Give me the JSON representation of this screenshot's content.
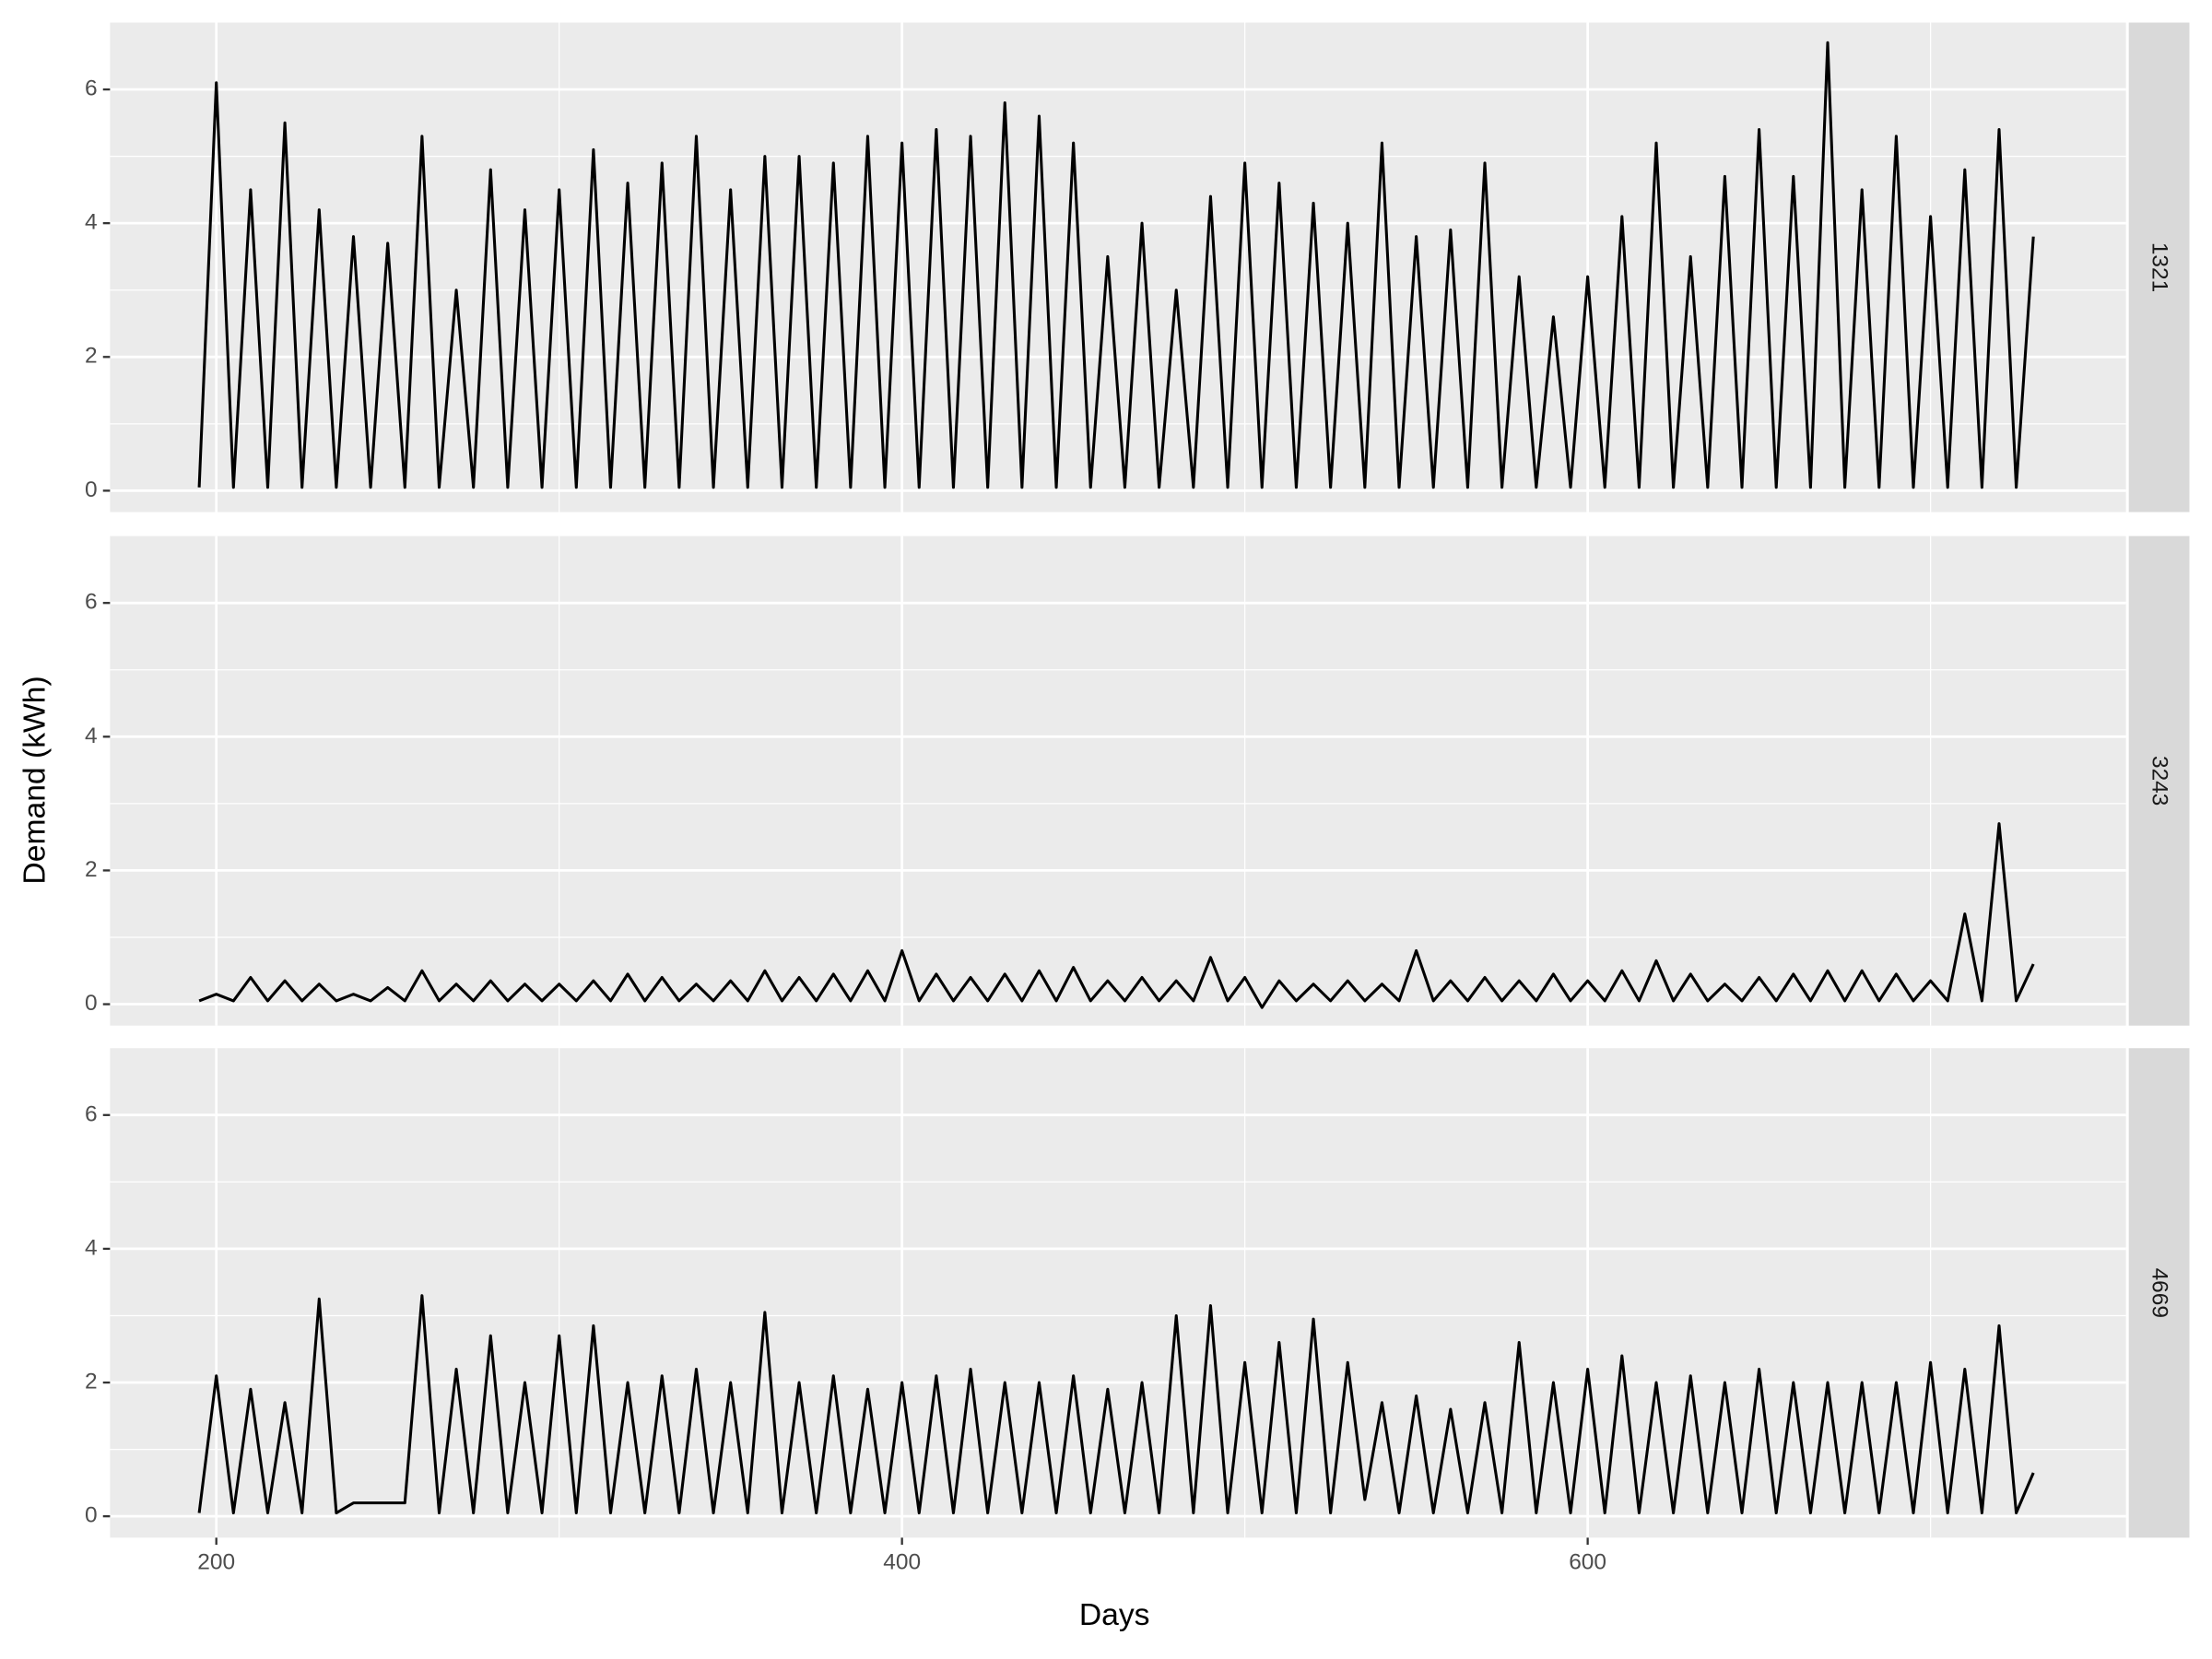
{
  "chart_data": {
    "type": "line",
    "xlabel": "Days",
    "ylabel": "Demand (kWh)",
    "color": "#000000",
    "grid": true,
    "xlim": [
      169,
      757
    ],
    "ylim": [
      -0.32,
      7.0
    ],
    "xticks": [
      200,
      400,
      600
    ],
    "yticks": [
      0,
      2,
      4,
      6
    ],
    "x": [
      195,
      200,
      205,
      210,
      215,
      220,
      225,
      230,
      235,
      240,
      245,
      250,
      255,
      260,
      265,
      270,
      275,
      280,
      285,
      290,
      295,
      300,
      305,
      310,
      315,
      320,
      325,
      330,
      335,
      340,
      345,
      350,
      355,
      360,
      365,
      370,
      375,
      380,
      385,
      390,
      395,
      400,
      405,
      410,
      415,
      420,
      425,
      430,
      435,
      440,
      445,
      450,
      455,
      460,
      465,
      470,
      475,
      480,
      485,
      490,
      495,
      500,
      505,
      510,
      515,
      520,
      525,
      530,
      535,
      540,
      545,
      550,
      555,
      560,
      565,
      570,
      575,
      580,
      585,
      590,
      595,
      600,
      605,
      610,
      615,
      620,
      625,
      630,
      635,
      640,
      645,
      650,
      655,
      660,
      665,
      670,
      675,
      680,
      685,
      690,
      695,
      700,
      705,
      710,
      715,
      720,
      725,
      730
    ],
    "facets": [
      {
        "label": "1321",
        "values": [
          0.05,
          6.1,
          0.05,
          4.5,
          0.05,
          5.5,
          0.05,
          4.2,
          0.05,
          3.8,
          0.05,
          3.7,
          0.05,
          5.3,
          0.05,
          3.0,
          0.05,
          4.8,
          0.05,
          4.2,
          0.05,
          4.5,
          0.05,
          5.1,
          0.05,
          4.6,
          0.05,
          4.9,
          0.05,
          5.3,
          0.05,
          4.5,
          0.05,
          5.0,
          0.05,
          5.0,
          0.05,
          4.9,
          0.05,
          5.3,
          0.05,
          5.2,
          0.05,
          5.4,
          0.05,
          5.3,
          0.05,
          5.8,
          0.05,
          5.6,
          0.05,
          5.2,
          0.05,
          3.5,
          0.05,
          4.0,
          0.05,
          3.0,
          0.05,
          4.4,
          0.05,
          4.9,
          0.05,
          4.6,
          0.05,
          4.3,
          0.05,
          4.0,
          0.05,
          5.2,
          0.05,
          3.8,
          0.05,
          3.9,
          0.05,
          4.9,
          0.05,
          3.2,
          0.05,
          2.6,
          0.05,
          3.2,
          0.05,
          4.1,
          0.05,
          5.2,
          0.05,
          3.5,
          0.05,
          4.7,
          0.05,
          5.4,
          0.05,
          4.7,
          0.05,
          6.7,
          0.05,
          4.5,
          0.05,
          5.3,
          0.05,
          4.1,
          0.05,
          4.8,
          0.05,
          5.4,
          0.05,
          3.8
        ]
      },
      {
        "label": "3243",
        "values": [
          0.05,
          0.15,
          0.05,
          0.4,
          0.05,
          0.35,
          0.05,
          0.3,
          0.05,
          0.15,
          0.05,
          0.25,
          0.05,
          0.5,
          0.05,
          0.3,
          0.05,
          0.35,
          0.05,
          0.3,
          0.05,
          0.3,
          0.05,
          0.35,
          0.05,
          0.45,
          0.05,
          0.4,
          0.05,
          0.3,
          0.05,
          0.35,
          0.05,
          0.5,
          0.05,
          0.4,
          0.05,
          0.45,
          0.05,
          0.5,
          0.05,
          0.8,
          0.05,
          0.45,
          0.05,
          0.4,
          0.05,
          0.45,
          0.05,
          0.5,
          0.05,
          0.55,
          0.05,
          0.35,
          0.05,
          0.4,
          0.05,
          0.35,
          0.05,
          0.7,
          0.05,
          0.4,
          -0.05,
          0.35,
          0.05,
          0.3,
          0.05,
          0.35,
          0.05,
          0.3,
          0.05,
          0.8,
          0.05,
          0.35,
          0.05,
          0.4,
          0.05,
          0.35,
          0.05,
          0.45,
          0.05,
          0.35,
          0.05,
          0.5,
          0.05,
          0.65,
          0.05,
          0.45,
          0.05,
          0.3,
          0.05,
          0.4,
          0.05,
          0.45,
          0.05,
          0.5,
          0.05,
          0.5,
          0.05,
          0.45,
          0.05,
          0.35,
          0.05,
          1.35,
          0.05,
          2.7,
          0.05,
          0.6
        ]
      },
      {
        "label": "4669",
        "values": [
          0.05,
          2.1,
          0.05,
          1.9,
          0.05,
          1.7,
          0.05,
          3.25,
          0.05,
          0.2,
          0.2,
          0.2,
          0.2,
          3.3,
          0.05,
          2.2,
          0.05,
          2.7,
          0.05,
          2.0,
          0.05,
          2.7,
          0.05,
          2.85,
          0.05,
          2.0,
          0.05,
          2.1,
          0.05,
          2.2,
          0.05,
          2.0,
          0.05,
          3.05,
          0.05,
          2.0,
          0.05,
          2.1,
          0.05,
          1.9,
          0.05,
          2.0,
          0.05,
          2.1,
          0.05,
          2.2,
          0.05,
          2.0,
          0.05,
          2.0,
          0.05,
          2.1,
          0.05,
          1.9,
          0.05,
          2.0,
          0.05,
          3.0,
          0.05,
          3.15,
          0.05,
          2.3,
          0.05,
          2.6,
          0.05,
          2.95,
          0.05,
          2.3,
          0.25,
          1.7,
          0.05,
          1.8,
          0.05,
          1.6,
          0.05,
          1.7,
          0.05,
          2.6,
          0.05,
          2.0,
          0.05,
          2.2,
          0.05,
          2.4,
          0.05,
          2.0,
          0.05,
          2.1,
          0.05,
          2.0,
          0.05,
          2.2,
          0.05,
          2.0,
          0.05,
          2.0,
          0.05,
          2.0,
          0.05,
          2.0,
          0.05,
          2.3,
          0.05,
          2.2,
          0.05,
          2.85,
          0.05,
          0.65
        ]
      }
    ]
  }
}
